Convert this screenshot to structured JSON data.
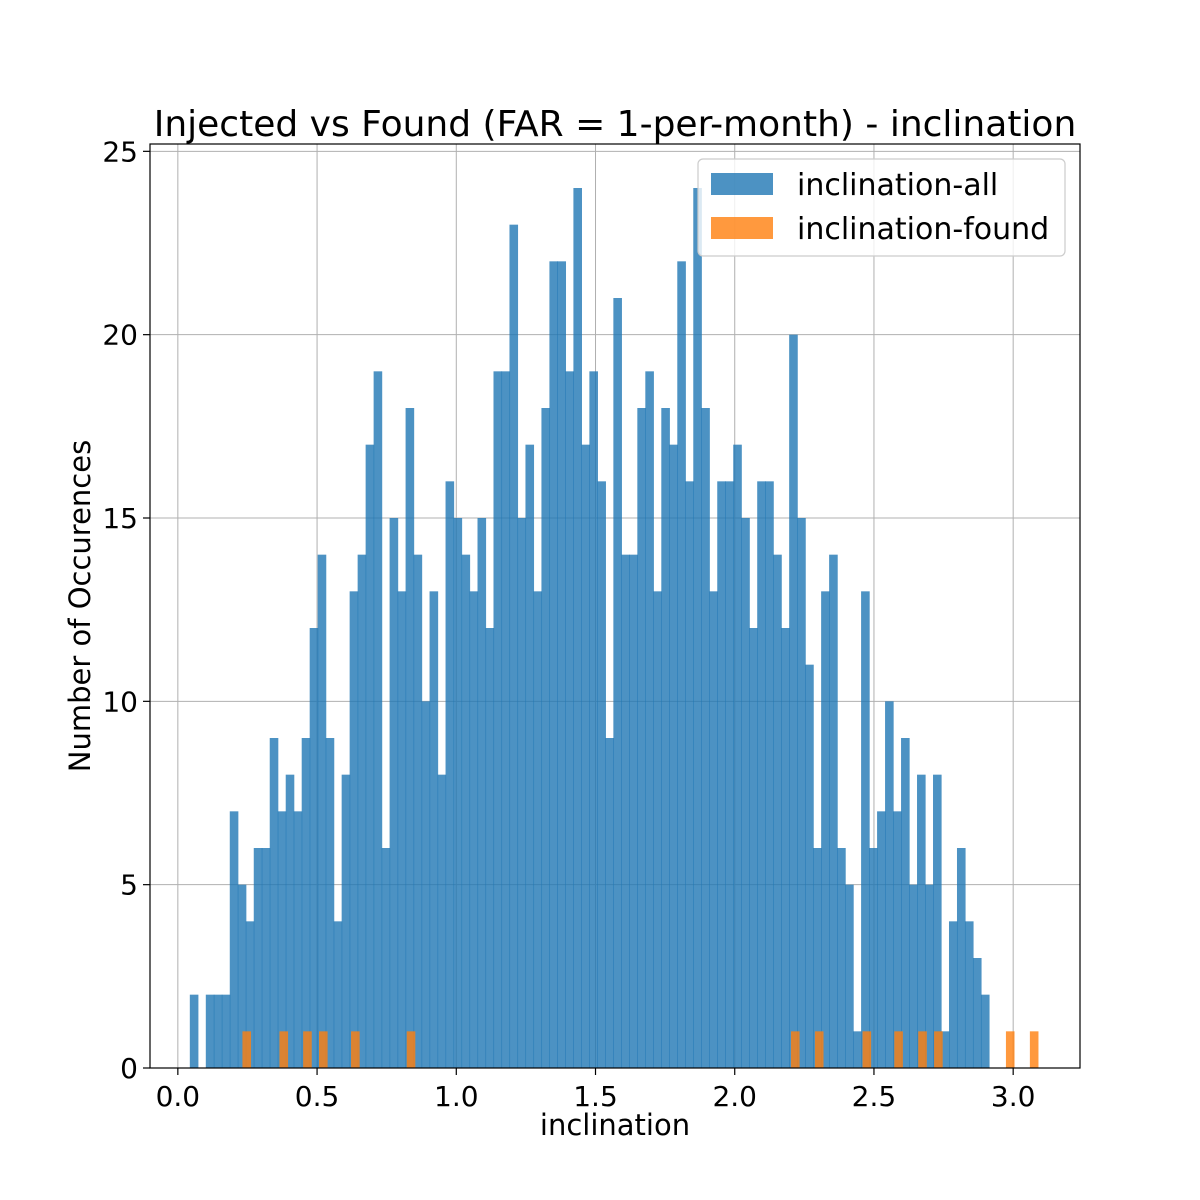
{
  "chart_data": {
    "type": "bar",
    "title": "Injected vs Found (FAR = 1-per-month) - inclination",
    "xlabel": "inclination",
    "ylabel": "Number of Occurences",
    "xlim": [
      -0.1,
      3.24
    ],
    "ylim": [
      0,
      25.2
    ],
    "grid": true,
    "legend_position": "top-right",
    "x_ticks": [
      0.0,
      0.5,
      1.0,
      1.5,
      2.0,
      2.5,
      3.0
    ],
    "x_tick_labels": [
      "0.0",
      "0.5",
      "1.0",
      "1.5",
      "2.0",
      "2.5",
      "3.0"
    ],
    "y_ticks": [
      0,
      5,
      10,
      15,
      20,
      25
    ],
    "y_tick_labels": [
      "0",
      "5",
      "10",
      "15",
      "20",
      "25"
    ],
    "bin_start": 0.043,
    "bin_width": 0.0287,
    "series": [
      {
        "name": "inclination-all",
        "color": "#1f77b4",
        "counts": [
          2,
          0,
          2,
          2,
          2,
          7,
          5,
          4,
          6,
          6,
          9,
          7,
          8,
          7,
          9,
          12,
          14,
          9,
          4,
          8,
          13,
          14,
          17,
          19,
          6,
          15,
          13,
          18,
          14,
          10,
          13,
          8,
          16,
          15,
          14,
          13,
          15,
          12,
          19,
          19,
          23,
          15,
          17,
          13,
          18,
          22,
          22,
          19,
          24,
          17,
          19,
          16,
          9,
          21,
          14,
          14,
          18,
          19,
          13,
          18,
          17,
          22,
          16,
          24,
          18,
          13,
          16,
          16,
          17,
          15,
          12,
          16,
          16,
          14,
          12,
          20,
          15,
          11,
          6,
          13,
          14,
          6,
          5,
          1,
          13,
          6,
          7,
          10,
          7,
          9,
          5,
          8,
          5,
          8,
          1,
          4,
          6,
          4,
          3,
          2
        ]
      },
      {
        "name": "inclination-found",
        "color": "#ff7f0e",
        "bars": [
          {
            "x": 0.232,
            "count": 1
          },
          {
            "x": 0.365,
            "count": 1
          },
          {
            "x": 0.45,
            "count": 1
          },
          {
            "x": 0.507,
            "count": 1
          },
          {
            "x": 0.622,
            "count": 1
          },
          {
            "x": 0.822,
            "count": 1
          },
          {
            "x": 2.202,
            "count": 1
          },
          {
            "x": 2.288,
            "count": 1
          },
          {
            "x": 2.459,
            "count": 1
          },
          {
            "x": 2.573,
            "count": 1
          },
          {
            "x": 2.659,
            "count": 1
          },
          {
            "x": 2.716,
            "count": 1
          },
          {
            "x": 2.974,
            "count": 1
          },
          {
            "x": 3.06,
            "count": 1
          }
        ]
      }
    ]
  }
}
